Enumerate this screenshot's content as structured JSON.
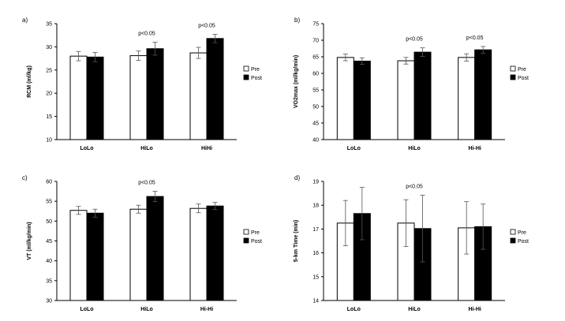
{
  "legend": {
    "pre": "Pre",
    "post": "Post"
  },
  "chart_data": [
    {
      "panel": "a)",
      "type": "bar",
      "ylabel": "RCM (ml/kg)",
      "ylim": [
        10,
        35
      ],
      "yticks": [
        10,
        15,
        20,
        25,
        30,
        35
      ],
      "categories": [
        "LoLo",
        "HiLo",
        "HiHi"
      ],
      "series": [
        {
          "name": "Pre",
          "values": [
            28.0,
            28.1,
            28.7
          ],
          "err": [
            1.0,
            1.0,
            1.2
          ]
        },
        {
          "name": "Post",
          "values": [
            27.8,
            29.6,
            31.8
          ],
          "err": [
            1.0,
            1.4,
            0.9
          ]
        }
      ],
      "annotations": [
        {
          "category": "HiLo",
          "text": "p<0.05"
        },
        {
          "category": "HiHi",
          "text": "p<0.05"
        }
      ],
      "legend_position": "right"
    },
    {
      "panel": "b)",
      "type": "bar",
      "ylabel": "VO2max (ml/kg/min)",
      "ylim": [
        40,
        75
      ],
      "yticks": [
        40,
        45,
        50,
        55,
        60,
        65,
        70,
        75
      ],
      "categories": [
        "LoLo",
        "HiLo",
        "Hi-Hi"
      ],
      "series": [
        {
          "name": "Pre",
          "values": [
            64.8,
            63.8,
            64.8
          ],
          "err": [
            1.0,
            1.0,
            1.1
          ]
        },
        {
          "name": "Post",
          "values": [
            63.7,
            66.4,
            67.1
          ],
          "err": [
            1.0,
            1.3,
            1.0
          ]
        }
      ],
      "annotations": [
        {
          "category": "HiLo",
          "text": "p<0.05"
        },
        {
          "category": "Hi-Hi",
          "text": "p<0.05"
        }
      ],
      "legend_position": "right"
    },
    {
      "panel": "c)",
      "type": "bar",
      "ylabel": "VT (ml/kg/min)",
      "ylim": [
        30,
        60
      ],
      "yticks": [
        30,
        35,
        40,
        45,
        50,
        55,
        60
      ],
      "categories": [
        "LoLo",
        "HiLo",
        "Hi-Hi"
      ],
      "series": [
        {
          "name": "Pre",
          "values": [
            52.7,
            53.0,
            53.2
          ],
          "err": [
            1.0,
            1.0,
            1.1
          ]
        },
        {
          "name": "Post",
          "values": [
            52.0,
            56.2,
            53.8
          ],
          "err": [
            1.0,
            1.3,
            0.9
          ]
        }
      ],
      "annotations": [
        {
          "category": "HiLo",
          "text": "p<0.05"
        }
      ],
      "legend_position": "right"
    },
    {
      "panel": "d)",
      "type": "bar",
      "ylabel": "5-km Time (min)",
      "ylim": [
        14,
        19
      ],
      "yticks": [
        14,
        15,
        16,
        17,
        18,
        19
      ],
      "categories": [
        "LoLo",
        "HiLo",
        "Hi-Hi"
      ],
      "series": [
        {
          "name": "Pre",
          "values": [
            17.25,
            17.25,
            17.05
          ],
          "err": [
            0.95,
            0.98,
            1.1
          ]
        },
        {
          "name": "Post",
          "values": [
            17.65,
            17.02,
            17.1
          ],
          "err": [
            1.1,
            1.4,
            0.95
          ]
        }
      ],
      "annotations": [
        {
          "category": "HiLo",
          "text": "p<0.05"
        }
      ],
      "legend_position": "right"
    }
  ]
}
